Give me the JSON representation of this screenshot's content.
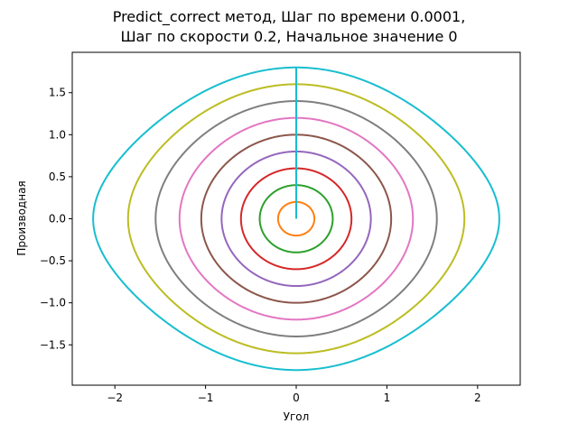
{
  "chart_data": {
    "type": "line",
    "title_lines": [
      "Predict_correct метод, Шаг по времени 0.0001,",
      "Шаг по скорости 0.2, Начальное значение 0"
    ],
    "xlabel": "Угол",
    "ylabel": "Производная",
    "xlim": [
      -2.47,
      2.47
    ],
    "ylim": [
      -1.98,
      1.98
    ],
    "xticks": [
      -2,
      -1,
      0,
      1,
      2
    ],
    "xtick_labels": [
      "−2",
      "−1",
      "0",
      "1",
      "2"
    ],
    "yticks": [
      -1.5,
      -1.0,
      -0.5,
      0.0,
      0.5,
      1.0,
      1.5
    ],
    "ytick_labels": [
      "−1.5",
      "−1.0",
      "−0.5",
      "0.0",
      "0.5",
      "1.0",
      "1.5"
    ],
    "grid": false,
    "legend": false,
    "initial_velocities": [
      0.0,
      0.2,
      0.4,
      0.6,
      0.8,
      1.0,
      1.2,
      1.4,
      1.6,
      1.8
    ],
    "series": [
      {
        "v0": 0.0,
        "color": "#1f77b4"
      },
      {
        "v0": 0.2,
        "color": "#ff7f0e"
      },
      {
        "v0": 0.4,
        "color": "#2ca02c"
      },
      {
        "v0": 0.6,
        "color": "#d62728"
      },
      {
        "v0": 0.8,
        "color": "#9467bd"
      },
      {
        "v0": 1.0,
        "color": "#8c564b"
      },
      {
        "v0": 1.2,
        "color": "#e377c2"
      },
      {
        "v0": 1.4,
        "color": "#7f7f7f"
      },
      {
        "v0": 1.6,
        "color": "#bcbd22"
      },
      {
        "v0": 1.8,
        "color": "#17becf"
      }
    ]
  }
}
